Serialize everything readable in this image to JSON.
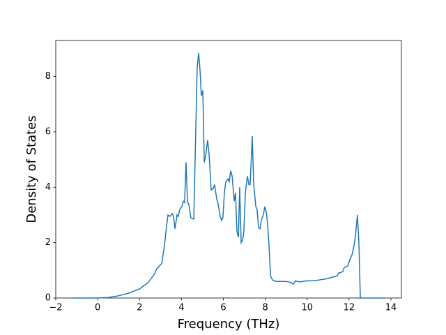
{
  "chart_data": {
    "type": "line",
    "xlabel": "Frequency (THz)",
    "ylabel": "Density of States",
    "xlim": [
      -2,
      14.5
    ],
    "ylim": [
      0,
      9.3
    ],
    "xticks": [
      {
        "value": -2,
        "label": "−2"
      },
      0,
      2,
      4,
      6,
      8,
      10,
      12,
      14
    ],
    "yticks": [
      0,
      2,
      4,
      6,
      8
    ],
    "series": [
      {
        "color": "#1f77b4",
        "x": [
          -1.25,
          0,
          0.5,
          1,
          1.5,
          2,
          2.4,
          2.7,
          2.82,
          3.06,
          3.19,
          3.29,
          3.36,
          3.46,
          3.56,
          3.62,
          3.69,
          3.79,
          3.85,
          3.92,
          4.02,
          4.09,
          4.15,
          4.22,
          4.29,
          4.35,
          4.45,
          4.59,
          4.75,
          4.82,
          4.89,
          4.95,
          5.02,
          5.09,
          5.15,
          5.25,
          5.32,
          5.42,
          5.52,
          5.58,
          5.68,
          5.75,
          5.85,
          5.92,
          5.98,
          6.05,
          6.12,
          6.22,
          6.28,
          6.35,
          6.42,
          6.52,
          6.58,
          6.65,
          6.72,
          6.78,
          6.85,
          6.92,
          6.98,
          7.05,
          7.15,
          7.22,
          7.28,
          7.38,
          7.45,
          7.55,
          7.61,
          7.68,
          7.75,
          7.81,
          7.91,
          7.98,
          8.05,
          8.11,
          8.18,
          8.25,
          8.35,
          8.51,
          8.98,
          9.24,
          9.34,
          9.44,
          9.64,
          9.98,
          10.31,
          10.64,
          10.97,
          11.24,
          11.44,
          11.5,
          11.7,
          11.77,
          11.94,
          12.04,
          12.14,
          12.24,
          12.3,
          12.4,
          12.47,
          12.54,
          13.74
        ],
        "values": [
          0,
          0,
          0.02,
          0.08,
          0.18,
          0.33,
          0.55,
          0.85,
          1.05,
          1.25,
          1.9,
          2.6,
          3.0,
          2.95,
          3.05,
          2.95,
          2.5,
          3.0,
          2.95,
          3.2,
          3.3,
          3.5,
          3.45,
          4.9,
          3.45,
          3.4,
          2.9,
          2.85,
          8.3,
          8.85,
          8.2,
          7.3,
          7.5,
          4.9,
          5.1,
          5.7,
          5.2,
          3.9,
          3.95,
          4.1,
          3.6,
          3.4,
          2.95,
          2.8,
          2.9,
          3.8,
          4.2,
          4.3,
          4.2,
          4.6,
          4.4,
          3.5,
          3.8,
          2.4,
          2.2,
          4.0,
          2.0,
          2.1,
          2.4,
          3.8,
          4.4,
          4.1,
          4.1,
          5.85,
          4.1,
          3.3,
          3.2,
          2.55,
          2.5,
          2.8,
          3.0,
          3.3,
          3.1,
          2.7,
          1.9,
          0.8,
          0.65,
          0.6,
          0.6,
          0.56,
          0.5,
          0.62,
          0.58,
          0.62,
          0.62,
          0.66,
          0.7,
          0.76,
          0.8,
          0.9,
          0.95,
          1.1,
          1.15,
          1.4,
          1.55,
          1.9,
          2.2,
          3.0,
          2.0,
          0,
          0
        ]
      }
    ]
  }
}
